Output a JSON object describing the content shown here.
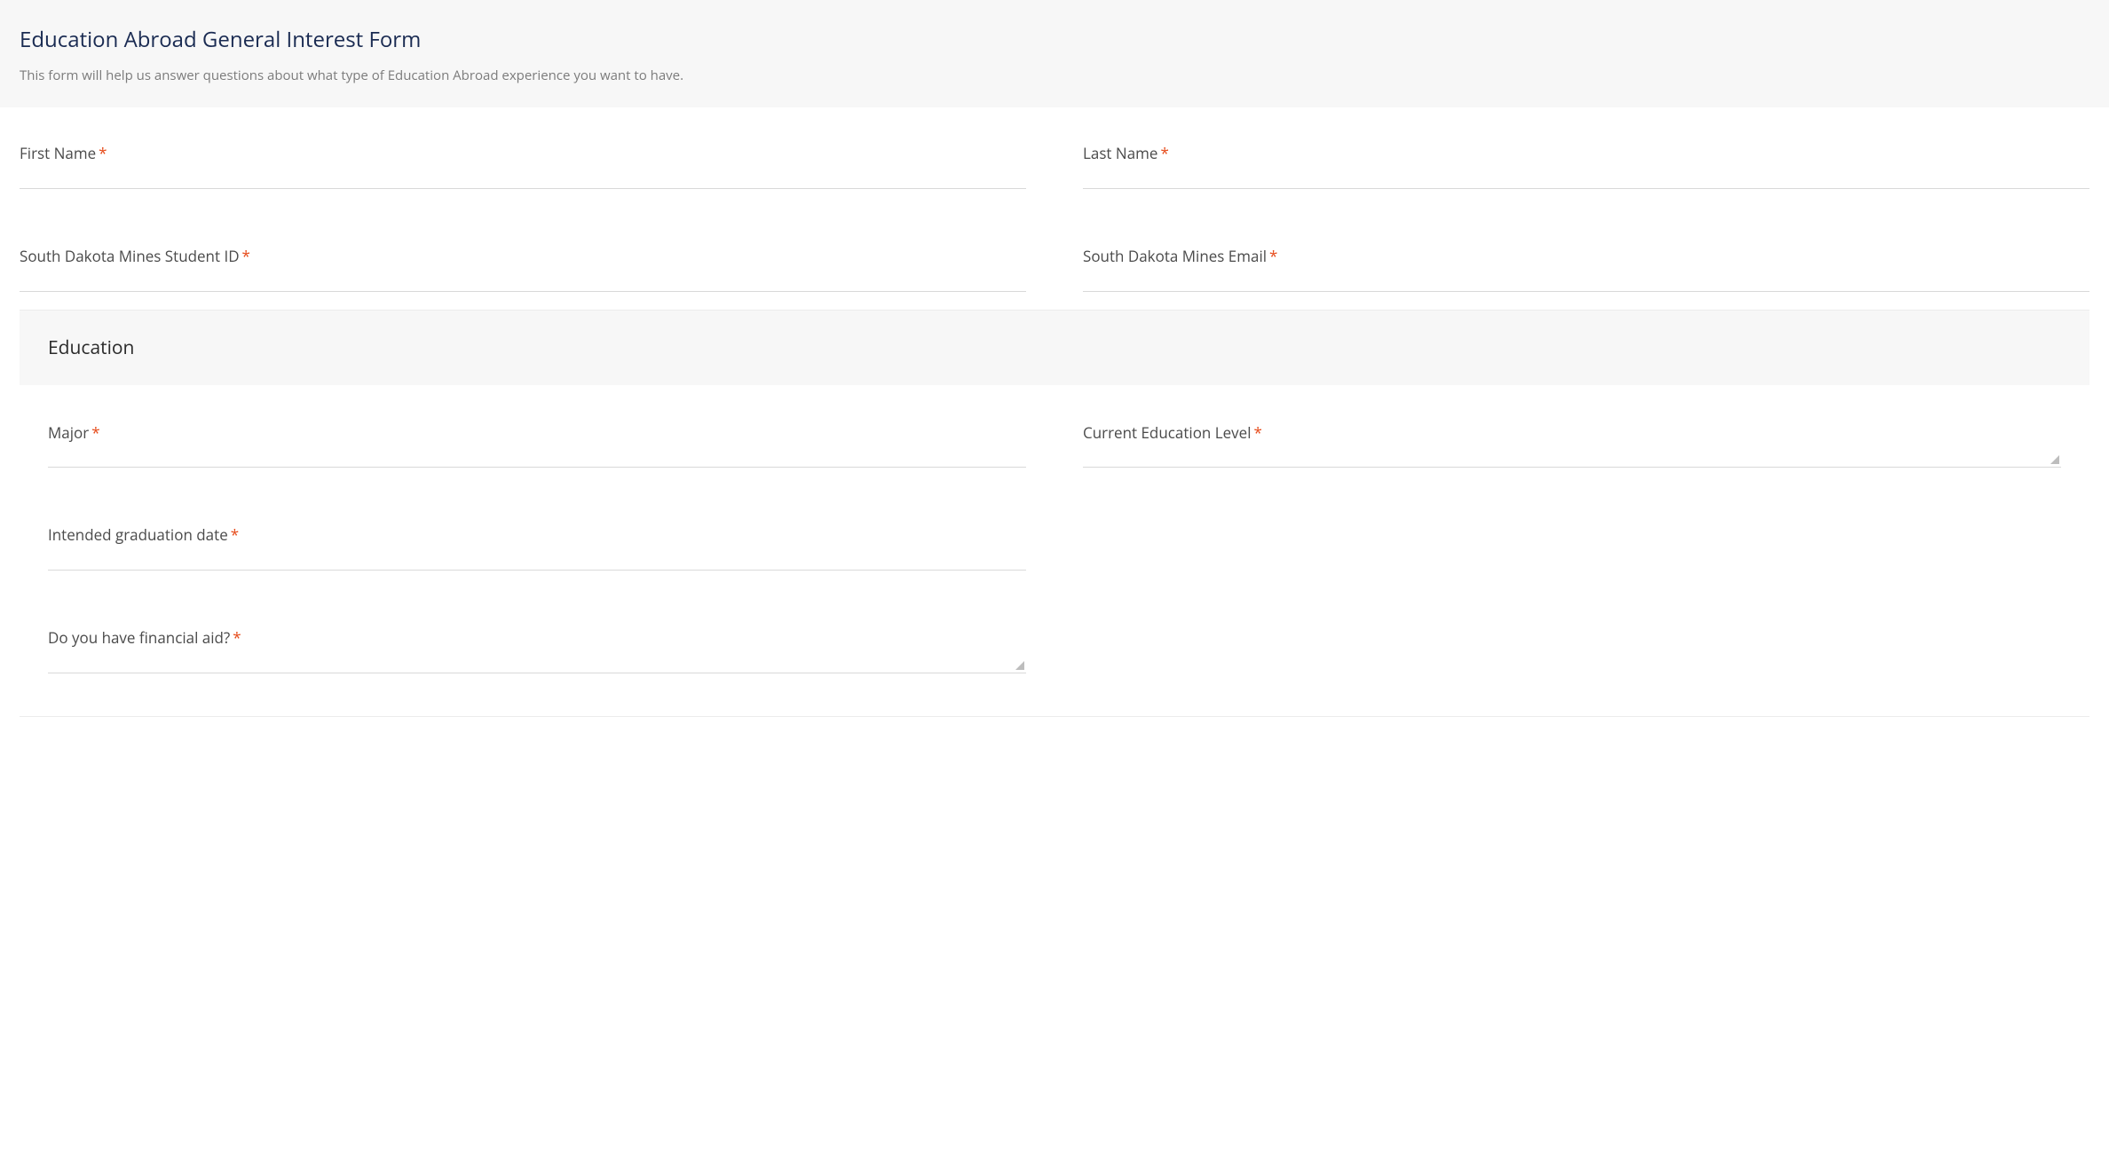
{
  "header": {
    "title": "Education Abroad General Interest Form",
    "description": "This form will help us answer questions about what type of Education Abroad experience you want to have."
  },
  "colors": {
    "title_color": "#1a2b52",
    "description_color": "#7b7b7b",
    "label_color": "#4a4a4a",
    "required_color": "#e64a19",
    "underline_color": "#d9d9d9",
    "header_bg": "#f7f7f7",
    "caret_color": "#bdbdbd"
  },
  "fields": {
    "first_name": {
      "label": "First Name",
      "required": true,
      "value": ""
    },
    "last_name": {
      "label": "Last Name",
      "required": true,
      "value": ""
    },
    "student_id": {
      "label": "South Dakota Mines Student ID",
      "required": true,
      "value": ""
    },
    "email": {
      "label": "South Dakota Mines Email",
      "required": true,
      "value": ""
    }
  },
  "education_section": {
    "title": "Education",
    "fields": {
      "major": {
        "label": "Major",
        "required": true,
        "value": ""
      },
      "education_level": {
        "label": "Current Education Level",
        "required": true,
        "value": "",
        "type": "select"
      },
      "graduation_date": {
        "label": "Intended graduation date",
        "required": true,
        "value": ""
      },
      "financial_aid": {
        "label": "Do you have financial aid?",
        "required": true,
        "value": "",
        "type": "select"
      }
    }
  },
  "required_marker": "*"
}
